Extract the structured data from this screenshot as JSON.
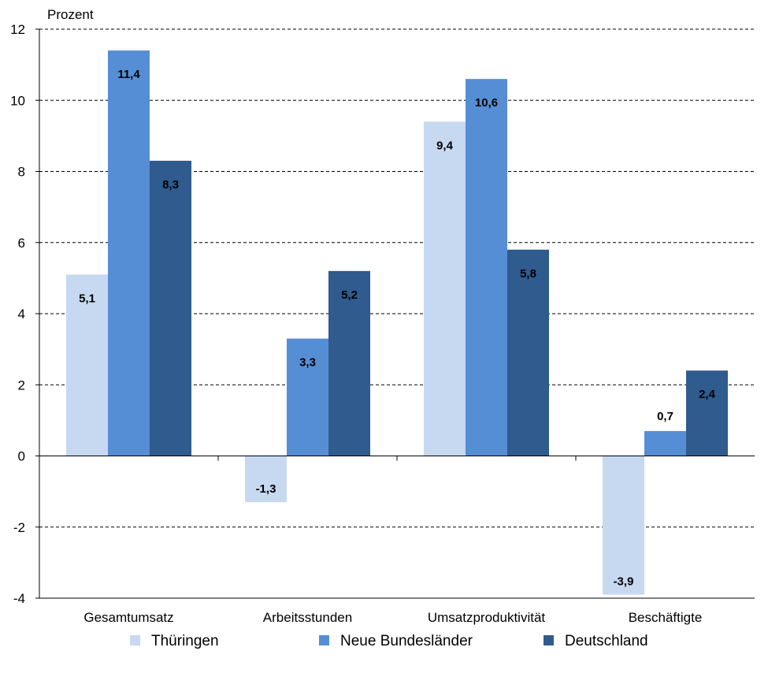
{
  "chart_data": {
    "type": "bar",
    "ylabel": "Prozent",
    "ylim": [
      -4,
      12
    ],
    "yticks": [
      12,
      10,
      8,
      6,
      4,
      2,
      0,
      -2,
      -4
    ],
    "grid": true,
    "legend_position": "bottom",
    "categories": [
      "Gesamtumsatz",
      "Arbeitsstunden",
      "Umsatzproduktivität",
      "Beschäftigte"
    ],
    "series": [
      {
        "name": "Thüringen",
        "color": "#c6d9f1",
        "values": [
          5.1,
          -1.3,
          9.4,
          -3.9
        ],
        "labels": [
          "5,1",
          "-1,3",
          "9,4",
          "-3,9"
        ]
      },
      {
        "name": "Neue Bundesländer",
        "color": "#558ed5",
        "values": [
          11.4,
          3.3,
          10.6,
          0.7
        ],
        "labels": [
          "11,4",
          "3,3",
          "10,6",
          "0,7"
        ]
      },
      {
        "name": "Deutschland",
        "color": "#2f5b8e",
        "values": [
          8.3,
          5.2,
          5.8,
          2.4
        ],
        "labels": [
          "8,3",
          "5,2",
          "5,8",
          "2,4"
        ]
      }
    ]
  }
}
